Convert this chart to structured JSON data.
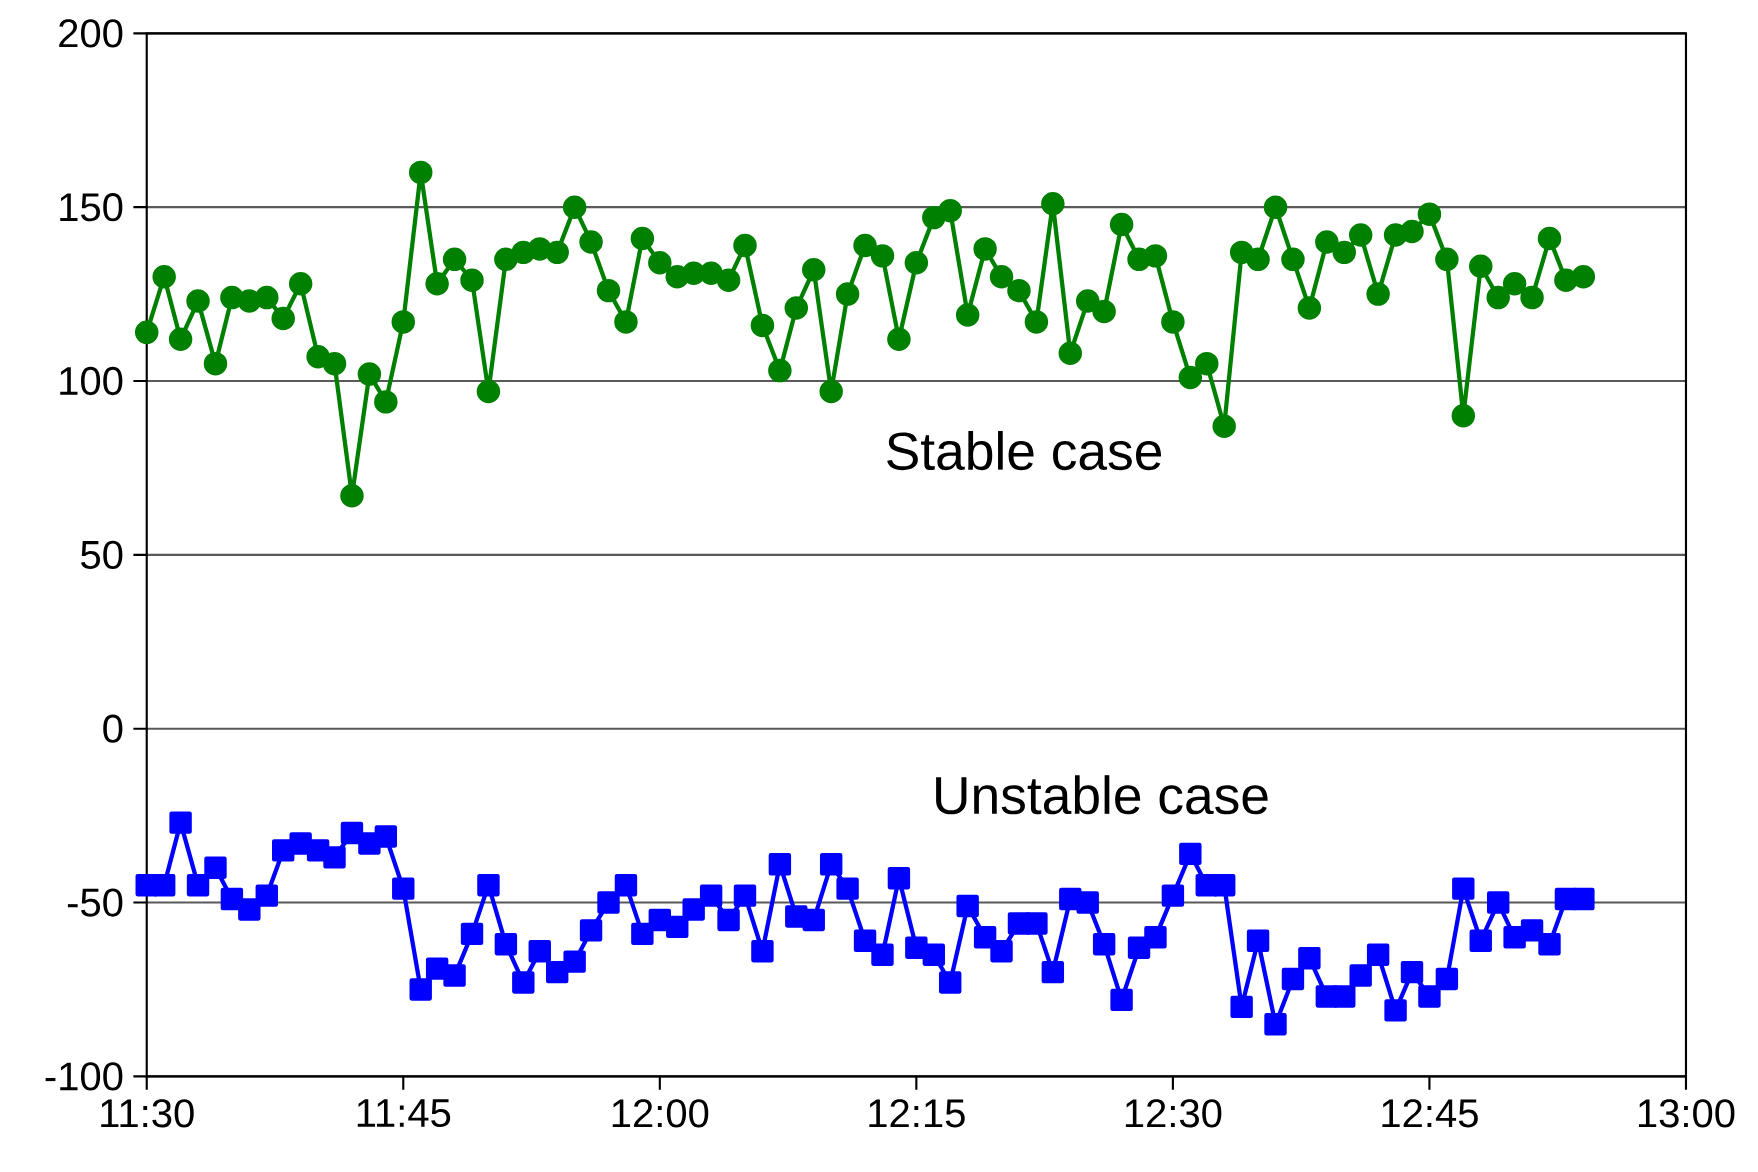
{
  "chart_data": {
    "type": "line",
    "x": [
      11.5,
      11.517,
      11.533,
      11.55,
      11.567,
      11.583,
      11.6,
      11.617,
      11.633,
      11.65,
      11.667,
      11.683,
      11.7,
      11.717,
      11.733,
      11.75,
      11.767,
      11.783,
      11.8,
      11.817,
      11.833,
      11.85,
      11.867,
      11.883,
      11.9,
      11.917,
      11.933,
      11.95,
      11.967,
      11.983,
      12,
      12.017,
      12.033,
      12.05,
      12.067,
      12.083,
      12.1,
      12.117,
      12.133,
      12.15,
      12.167,
      12.183,
      12.2,
      12.217,
      12.233,
      12.25,
      12.267,
      12.283,
      12.3,
      12.317,
      12.333,
      12.35,
      12.367,
      12.383,
      12.4,
      12.417,
      12.433,
      12.45,
      12.467,
      12.483,
      12.5,
      12.517,
      12.533,
      12.55,
      12.567,
      12.583,
      12.6,
      12.617,
      12.633,
      12.65,
      12.667,
      12.683,
      12.7,
      12.717,
      12.733,
      12.75,
      12.767,
      12.783,
      12.8,
      12.817,
      12.833,
      12.85,
      12.867,
      12.883,
      12.9
    ],
    "series": [
      {
        "name": "Stable case",
        "color": "#008000",
        "marker": "circle",
        "values": [
          114,
          130,
          112,
          123,
          105,
          124,
          123,
          124,
          118,
          128,
          107,
          105,
          67,
          102,
          94,
          117,
          160,
          128,
          135,
          129,
          97,
          135,
          137,
          138,
          137,
          150,
          140,
          126,
          117,
          141,
          134,
          130,
          131,
          131,
          129,
          139,
          116,
          103,
          121,
          132,
          97,
          125,
          139,
          136,
          112,
          134,
          147,
          149,
          119,
          138,
          130,
          126,
          117,
          151,
          108,
          123,
          120,
          145,
          135,
          136,
          117,
          101,
          105,
          87,
          137,
          135,
          150,
          135,
          121,
          140,
          137,
          142,
          125,
          142,
          143,
          148,
          135,
          90,
          133,
          124,
          128,
          124,
          141,
          129,
          130
        ]
      },
      {
        "name": "Unstable case",
        "color": "#0000ff",
        "marker": "square",
        "values": [
          -45,
          -45,
          -27,
          -45,
          -40,
          -49,
          -52,
          -48,
          -35,
          -33,
          -35,
          -37,
          -30,
          -33,
          -31,
          -46,
          -75,
          -69,
          -71,
          -59,
          -45,
          -62,
          -73,
          -64,
          -70,
          -67,
          -58,
          -50,
          -45,
          -59,
          -55,
          -57,
          -52,
          -48,
          -55,
          -48,
          -64,
          -39,
          -54,
          -55,
          -39,
          -46,
          -61,
          -65,
          -43,
          -63,
          -65,
          -73,
          -51,
          -60,
          -64,
          -56,
          -56,
          -70,
          -49,
          -50,
          -62,
          -78,
          -63,
          -60,
          -48,
          -36,
          -45,
          -45,
          -80,
          -61,
          -85,
          -72,
          -66,
          -77,
          -77,
          -71,
          -65,
          -81,
          -70,
          -77,
          -72,
          -46,
          -61,
          -50,
          -60,
          -58,
          -62,
          -49,
          -49
        ]
      }
    ],
    "xlim": [
      11.5,
      13
    ],
    "xticks": [
      {
        "value": 11.5,
        "label": "11:30"
      },
      {
        "value": 11.75,
        "label": "11:45"
      },
      {
        "value": 12,
        "label": "12:00"
      },
      {
        "value": 12.25,
        "label": "12:15"
      },
      {
        "value": 12.5,
        "label": "12:30"
      },
      {
        "value": 12.75,
        "label": "12:45"
      },
      {
        "value": 13,
        "label": "13:00"
      }
    ],
    "ylim": [
      -100,
      200
    ],
    "yticks": [
      -100,
      -50,
      0,
      50,
      100,
      150,
      200
    ],
    "grid": "y",
    "legend": false
  }
}
